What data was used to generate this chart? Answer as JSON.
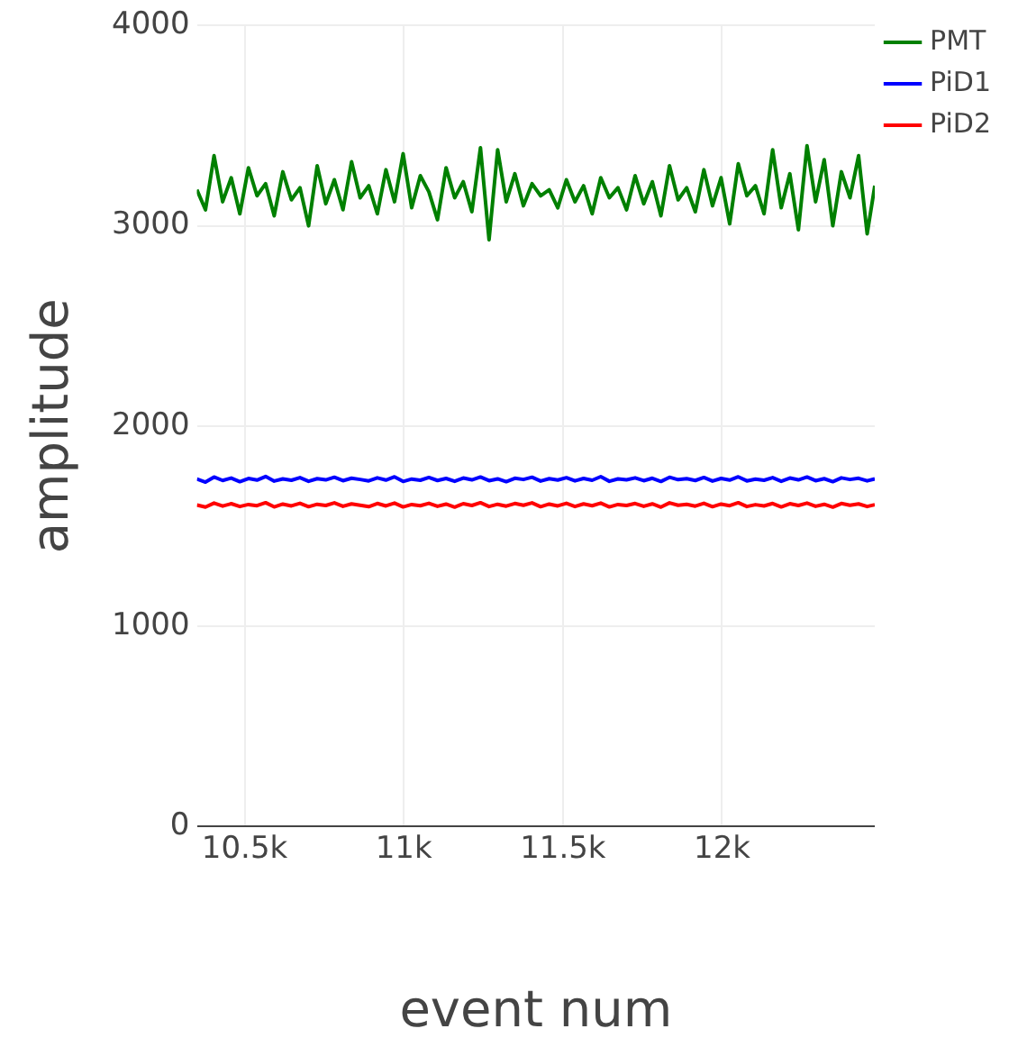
{
  "chart_data": {
    "type": "line",
    "xlabel": "event num",
    "ylabel": "amplitude",
    "x": [
      10350,
      10377,
      10404,
      10431,
      10458,
      10485,
      10512,
      10539,
      10566,
      10593,
      10620,
      10647,
      10674,
      10701,
      10728,
      10755,
      10782,
      10809,
      10836,
      10863,
      10890,
      10917,
      10944,
      10971,
      10998,
      11025,
      11052,
      11079,
      11106,
      11133,
      11160,
      11187,
      11214,
      11241,
      11268,
      11295,
      11322,
      11349,
      11376,
      11403,
      11430,
      11457,
      11484,
      11511,
      11538,
      11565,
      11592,
      11619,
      11646,
      11673,
      11700,
      11727,
      11754,
      11781,
      11808,
      11835,
      11862,
      11889,
      11916,
      11943,
      11970,
      11997,
      12024,
      12051,
      12078,
      12105,
      12132,
      12159,
      12186,
      12213,
      12240,
      12267,
      12294,
      12321,
      12348,
      12375,
      12402,
      12429,
      12456,
      12480
    ],
    "series": [
      {
        "name": "PMT",
        "color": "#008000",
        "values": [
          3180,
          3080,
          3350,
          3120,
          3240,
          3060,
          3290,
          3150,
          3210,
          3050,
          3270,
          3130,
          3190,
          3000,
          3300,
          3110,
          3230,
          3080,
          3320,
          3140,
          3200,
          3060,
          3280,
          3120,
          3360,
          3090,
          3250,
          3170,
          3030,
          3290,
          3140,
          3220,
          3070,
          3390,
          2930,
          3380,
          3120,
          3260,
          3100,
          3210,
          3150,
          3180,
          3090,
          3230,
          3120,
          3200,
          3060,
          3240,
          3140,
          3190,
          3080,
          3250,
          3110,
          3220,
          3050,
          3300,
          3130,
          3190,
          3070,
          3280,
          3100,
          3240,
          3010,
          3310,
          3150,
          3200,
          3060,
          3380,
          3090,
          3260,
          2980,
          3400,
          3120,
          3330,
          3000,
          3270,
          3140,
          3350,
          2960,
          3200
        ]
      },
      {
        "name": "PiD1",
        "color": "#0000ff",
        "values": [
          1735,
          1720,
          1745,
          1728,
          1740,
          1722,
          1738,
          1730,
          1748,
          1725,
          1736,
          1729,
          1742,
          1724,
          1737,
          1731,
          1744,
          1727,
          1739,
          1733,
          1726,
          1741,
          1730,
          1746,
          1723,
          1735,
          1729,
          1743,
          1728,
          1738,
          1724,
          1740,
          1731,
          1745,
          1727,
          1736,
          1722,
          1739,
          1733,
          1744,
          1725,
          1737,
          1730,
          1742,
          1726,
          1738,
          1729,
          1747,
          1724,
          1736,
          1731,
          1741,
          1727,
          1739,
          1723,
          1744,
          1732,
          1737,
          1728,
          1743,
          1725,
          1738,
          1730,
          1746,
          1726,
          1735,
          1729,
          1742,
          1724,
          1740,
          1731,
          1745,
          1727,
          1737,
          1722,
          1741,
          1733,
          1739,
          1726,
          1736
        ]
      },
      {
        "name": "PiD2",
        "color": "#ff0000",
        "values": [
          1605,
          1595,
          1615,
          1600,
          1612,
          1598,
          1608,
          1602,
          1617,
          1596,
          1610,
          1601,
          1614,
          1597,
          1609,
          1603,
          1616,
          1599,
          1611,
          1604,
          1597,
          1613,
          1601,
          1615,
          1596,
          1608,
          1602,
          1614,
          1599,
          1610,
          1595,
          1612,
          1603,
          1617,
          1598,
          1609,
          1600,
          1613,
          1604,
          1616,
          1597,
          1610,
          1601,
          1614,
          1598,
          1611,
          1602,
          1615,
          1596,
          1608,
          1603,
          1613,
          1599,
          1611,
          1595,
          1616,
          1604,
          1609,
          1600,
          1614,
          1597,
          1610,
          1602,
          1617,
          1598,
          1607,
          1601,
          1613,
          1596,
          1612,
          1603,
          1615,
          1599,
          1609,
          1595,
          1613,
          1604,
          1611,
          1598,
          1607
        ]
      }
    ],
    "xlim": [
      10350,
      12480
    ],
    "xticks": [
      {
        "value": 10500,
        "label": "10.5k"
      },
      {
        "value": 11000,
        "label": "11k"
      },
      {
        "value": 11500,
        "label": "11.5k"
      },
      {
        "value": 12000,
        "label": "12k"
      }
    ],
    "ylim": [
      0,
      4000
    ],
    "yticks": [
      0,
      1000,
      2000,
      3000,
      4000
    ],
    "grid": true,
    "legend": "top right",
    "marker": "none",
    "line_style": "solid"
  }
}
